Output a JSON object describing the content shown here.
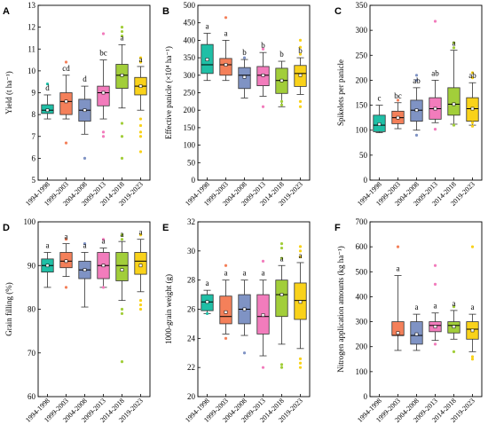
{
  "categories": [
    "1994-1998",
    "1999-2003",
    "2004-2008",
    "2009-2013",
    "2014-2018",
    "2019-2023"
  ],
  "colors": [
    "#1FBFA6",
    "#F4805A",
    "#7F93C4",
    "#F27CBC",
    "#A2CE3A",
    "#F9D21A"
  ],
  "chart_data": [
    {
      "type": "box",
      "panel": "A",
      "ylabel": "Yield (t ha⁻¹)",
      "ylim": [
        5,
        13
      ],
      "yticks": [
        5,
        6,
        7,
        8,
        9,
        10,
        11,
        12,
        13
      ],
      "boxes": [
        {
          "min": 7.8,
          "q1": 8.05,
          "median": 8.2,
          "q3": 8.45,
          "max": 8.9,
          "mean": 8.2,
          "letter": "d",
          "outliers": [
            9.4
          ]
        },
        {
          "min": 7.8,
          "q1": 8.0,
          "median": 8.6,
          "q3": 9.0,
          "max": 9.8,
          "mean": 8.6,
          "letter": "cd",
          "outliers": [
            10.4,
            6.7
          ]
        },
        {
          "min": 7.1,
          "q1": 7.7,
          "median": 8.2,
          "q3": 8.7,
          "max": 9.3,
          "mean": 8.2,
          "letter": "d",
          "outliers": [
            6.0
          ]
        },
        {
          "min": 7.8,
          "q1": 8.4,
          "median": 9.0,
          "q3": 9.3,
          "max": 10.5,
          "mean": 9.0,
          "letter": "bc",
          "outliers": [
            11.7,
            7.2,
            7.0
          ]
        },
        {
          "min": 8.3,
          "q1": 9.2,
          "median": 9.8,
          "q3": 10.3,
          "max": 11.2,
          "mean": 9.8,
          "letter": "a",
          "outliers": [
            12.0,
            11.8,
            11.6,
            7.6,
            7.0,
            6.0
          ]
        },
        {
          "min": 8.2,
          "q1": 8.9,
          "median": 9.3,
          "q3": 9.7,
          "max": 10.2,
          "mean": 9.3,
          "letter": "a",
          "outliers": [
            10.6,
            10.4,
            7.8,
            7.5,
            7.2,
            7.0,
            6.3
          ]
        }
      ]
    },
    {
      "type": "box",
      "panel": "B",
      "ylabel": "Effective panicle (×10⁴ ha⁻¹)",
      "ylim": [
        0,
        500
      ],
      "yticks": [
        0,
        50,
        100,
        150,
        200,
        250,
        300,
        350,
        400,
        450,
        500
      ],
      "boxes": [
        {
          "min": 285,
          "q1": 305,
          "median": 330,
          "q3": 388,
          "max": 420,
          "mean": 345,
          "letter": "a",
          "outliers": []
        },
        {
          "min": 285,
          "q1": 300,
          "median": 330,
          "q3": 348,
          "max": 400,
          "mean": 330,
          "letter": "a",
          "outliers": [
            465
          ]
        },
        {
          "min": 235,
          "q1": 262,
          "median": 300,
          "q3": 322,
          "max": 345,
          "mean": 295,
          "letter": "b",
          "outliers": [
            350
          ]
        },
        {
          "min": 240,
          "q1": 270,
          "median": 300,
          "q3": 325,
          "max": 365,
          "mean": 300,
          "letter": "b",
          "outliers": [
            375,
            210
          ]
        },
        {
          "min": 210,
          "q1": 248,
          "median": 285,
          "q3": 320,
          "max": 340,
          "mean": 285,
          "letter": "b",
          "outliers": [
            225,
            215
          ]
        },
        {
          "min": 245,
          "q1": 268,
          "median": 305,
          "q3": 328,
          "max": 350,
          "mean": 300,
          "letter": "b",
          "outliers": [
            400,
            380,
            360,
            225,
            210
          ]
        }
      ]
    },
    {
      "type": "box",
      "panel": "C",
      "ylabel": "Spikelets per panicle",
      "ylim": [
        0,
        350
      ],
      "yticks": [
        0,
        50,
        100,
        150,
        200,
        250,
        300,
        350
      ],
      "boxes": [
        {
          "min": 95,
          "q1": 97,
          "median": 110,
          "q3": 130,
          "max": 150,
          "mean": 112,
          "letter": "c",
          "outliers": []
        },
        {
          "min": 103,
          "q1": 113,
          "median": 125,
          "q3": 138,
          "max": 155,
          "mean": 125,
          "letter": "bc",
          "outliers": [
            160
          ]
        },
        {
          "min": 100,
          "q1": 118,
          "median": 140,
          "q3": 160,
          "max": 185,
          "mean": 140,
          "letter": "ab",
          "outliers": [
            210,
            200,
            90
          ]
        },
        {
          "min": 115,
          "q1": 122,
          "median": 143,
          "q3": 165,
          "max": 200,
          "mean": 143,
          "letter": "ab",
          "outliers": [
            318,
            102
          ]
        },
        {
          "min": 112,
          "q1": 130,
          "median": 152,
          "q3": 185,
          "max": 260,
          "mean": 152,
          "letter": "a",
          "outliers": [
            275,
            265,
            110
          ]
        },
        {
          "min": 110,
          "q1": 118,
          "median": 143,
          "q3": 165,
          "max": 195,
          "mean": 143,
          "letter": "ab",
          "outliers": [
            215,
            205,
            115,
            108
          ]
        }
      ]
    },
    {
      "type": "box",
      "panel": "D",
      "ylabel": "Grain filling (%)",
      "ylim": [
        60,
        100
      ],
      "yticks": [
        60,
        70,
        80,
        90,
        100
      ],
      "boxes": [
        {
          "min": 85,
          "q1": 88.5,
          "median": 90,
          "q3": 91.5,
          "max": 93,
          "mean": 90,
          "letter": "a",
          "outliers": []
        },
        {
          "min": 87.5,
          "q1": 89.5,
          "median": 91,
          "q3": 93,
          "max": 95,
          "mean": 91,
          "letter": "a",
          "outliers": [
            96,
            85
          ]
        },
        {
          "min": 80.5,
          "q1": 87,
          "median": 89,
          "q3": 91,
          "max": 93,
          "mean": 89,
          "letter": "a",
          "outliers": [
            95,
            88
          ]
        },
        {
          "min": 85,
          "q1": 87,
          "median": 90,
          "q3": 93,
          "max": 94,
          "mean": 90,
          "letter": "a",
          "outliers": [
            96,
            85
          ]
        },
        {
          "min": 82,
          "q1": 86.5,
          "median": 90,
          "q3": 93,
          "max": 95.5,
          "mean": 89,
          "letter": "a",
          "outliers": [
            97,
            96,
            80,
            79,
            68
          ]
        },
        {
          "min": 84,
          "q1": 88,
          "median": 91,
          "q3": 93,
          "max": 96,
          "mean": 90,
          "letter": "a",
          "outliers": [
            97,
            82,
            81,
            80
          ]
        }
      ]
    },
    {
      "type": "box",
      "panel": "E",
      "ylabel": "1000-grain weight (g)",
      "ylim": [
        20,
        32
      ],
      "yticks": [
        20,
        22,
        24,
        26,
        28,
        30,
        32
      ],
      "boxes": [
        {
          "min": 25.7,
          "q1": 25.9,
          "median": 26.5,
          "q3": 27.0,
          "max": 27.3,
          "mean": 26.5,
          "letter": "a",
          "outliers": [
            25.7
          ]
        },
        {
          "min": 24.3,
          "q1": 25.0,
          "median": 25.5,
          "q3": 26.9,
          "max": 28.0,
          "mean": 25.8,
          "letter": "a",
          "outliers": [
            29.0,
            24.0
          ]
        },
        {
          "min": 24.2,
          "q1": 25.0,
          "median": 26.0,
          "q3": 27.0,
          "max": 28.0,
          "mean": 26.0,
          "letter": "a",
          "outliers": [
            23.0
          ]
        },
        {
          "min": 22.8,
          "q1": 24.3,
          "median": 25.5,
          "q3": 27.0,
          "max": 28.0,
          "mean": 25.6,
          "letter": "a",
          "outliers": [
            29.3,
            22.0
          ]
        },
        {
          "min": 23.6,
          "q1": 25.5,
          "median": 27.0,
          "q3": 28.0,
          "max": 29.0,
          "mean": 27.0,
          "letter": "a",
          "outliers": [
            30.5,
            30.2,
            29.5,
            22.2,
            22.0
          ]
        },
        {
          "min": 23.3,
          "q1": 25.3,
          "median": 26.6,
          "q3": 27.8,
          "max": 29.2,
          "mean": 26.5,
          "letter": "a",
          "outliers": [
            30.3,
            30.0,
            29.6,
            22.6,
            22.3,
            22.0
          ]
        }
      ]
    },
    {
      "type": "box",
      "panel": "F",
      "ylabel": "Nitrogen application amounts (kg ha⁻¹)",
      "ylim": [
        0,
        700
      ],
      "yticks": [
        0,
        100,
        200,
        300,
        400,
        500,
        600,
        700
      ],
      "boxes": [
        null,
        {
          "min": 185,
          "q1": 245,
          "median": 245,
          "q3": 300,
          "max": 485,
          "mean": 255,
          "letter": "a",
          "outliers": [
            600
          ]
        },
        {
          "min": 185,
          "q1": 210,
          "median": 245,
          "q3": 300,
          "max": 330,
          "mean": 250,
          "letter": "a",
          "outliers": []
        },
        {
          "min": 225,
          "q1": 260,
          "median": 285,
          "q3": 300,
          "max": 335,
          "mean": 280,
          "letter": "a",
          "outliers": [
            525,
            450,
            210
          ]
        },
        {
          "min": 230,
          "q1": 255,
          "median": 285,
          "q3": 300,
          "max": 345,
          "mean": 280,
          "letter": "a",
          "outliers": [
            360,
            180
          ]
        },
        {
          "min": 180,
          "q1": 230,
          "median": 270,
          "q3": 300,
          "max": 330,
          "mean": 265,
          "letter": "a",
          "outliers": [
            600,
            150,
            160
          ]
        }
      ]
    }
  ]
}
